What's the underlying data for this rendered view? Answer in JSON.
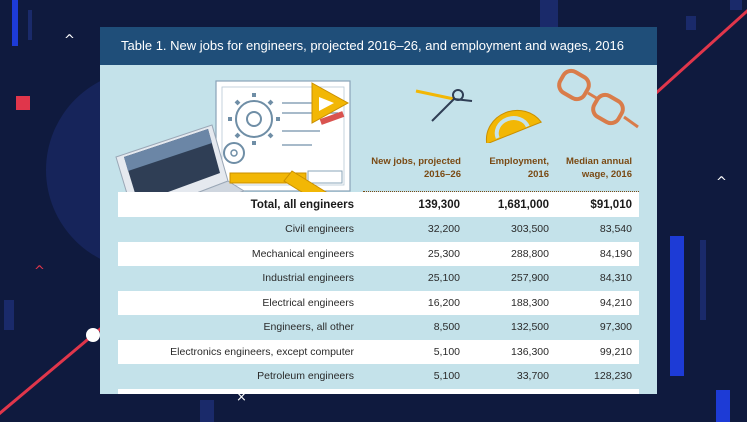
{
  "table": {
    "title": "Table 1. New jobs for engineers, projected 2016–26, and employment and wages, 2016",
    "columns": [
      {
        "line1": "New jobs, projected",
        "line2": "2016–26"
      },
      {
        "line1": "Employment,",
        "line2": "2016"
      },
      {
        "line1": "Median annual",
        "line2": "wage, 2016"
      }
    ],
    "total": {
      "label": "Total, all engineers",
      "new_jobs": "139,300",
      "employment": "1,681,000",
      "wage": "$91,010"
    },
    "rows": [
      {
        "label": "Civil engineers",
        "new_jobs": "32,200",
        "employment": "303,500",
        "wage": "83,540"
      },
      {
        "label": "Mechanical engineers",
        "new_jobs": "25,300",
        "employment": "288,800",
        "wage": "84,190"
      },
      {
        "label": "Industrial engineers",
        "new_jobs": "25,100",
        "employment": "257,900",
        "wage": "84,310"
      },
      {
        "label": "Electrical engineers",
        "new_jobs": "16,200",
        "employment": "188,300",
        "wage": "94,210"
      },
      {
        "label": "Engineers, all other",
        "new_jobs": "8,500",
        "employment": "132,500",
        "wage": "97,300"
      },
      {
        "label": "Electronics engineers, except computer",
        "new_jobs": "5,100",
        "employment": "136,300",
        "wage": "99,210"
      },
      {
        "label": "Petroleum engineers",
        "new_jobs": "5,100",
        "employment": "33,700",
        "wage": "128,230"
      }
    ]
  },
  "colors": {
    "background": "#0f1a3e",
    "card": "#c4e2ea",
    "header": "#1f4e79",
    "accent_red": "#e0364b",
    "accent_blue": "#1d3bd6",
    "header_text_brown": "#7a4a14"
  },
  "icons": [
    "laptop-icon",
    "blueprint-icon",
    "gear-icon",
    "triangle-ruler-icon",
    "pencil-icon",
    "compass-icon",
    "protractor-icon",
    "eyeglasses-icon",
    "chevron-up-icon"
  ]
}
